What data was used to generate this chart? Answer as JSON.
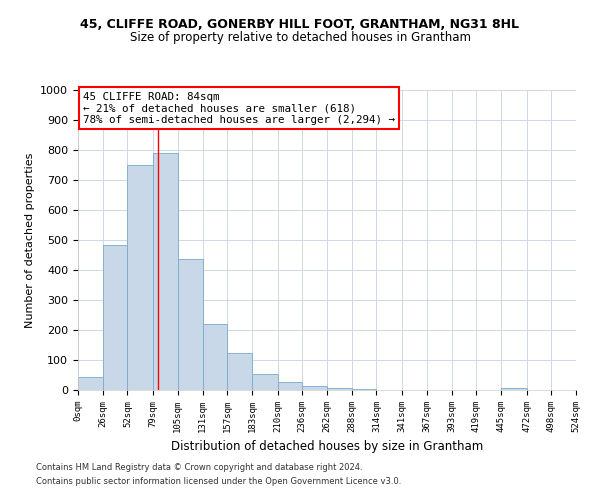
{
  "title_line1": "45, CLIFFE ROAD, GONERBY HILL FOOT, GRANTHAM, NG31 8HL",
  "title_line2": "Size of property relative to detached houses in Grantham",
  "xlabel": "Distribution of detached houses by size in Grantham",
  "ylabel": "Number of detached properties",
  "bar_edges": [
    0,
    26,
    52,
    79,
    105,
    131,
    157,
    183,
    210,
    236,
    262,
    288,
    314,
    341,
    367,
    393,
    419,
    445,
    472,
    498,
    524
  ],
  "bar_heights": [
    45,
    485,
    750,
    790,
    438,
    220,
    125,
    52,
    28,
    15,
    8,
    3,
    1,
    1,
    0,
    0,
    0,
    8,
    0,
    0
  ],
  "tick_labels": [
    "0sqm",
    "26sqm",
    "52sqm",
    "79sqm",
    "105sqm",
    "131sqm",
    "157sqm",
    "183sqm",
    "210sqm",
    "236sqm",
    "262sqm",
    "288sqm",
    "314sqm",
    "341sqm",
    "367sqm",
    "393sqm",
    "419sqm",
    "445sqm",
    "472sqm",
    "498sqm",
    "524sqm"
  ],
  "bar_color": "#c8d8e8",
  "bar_edgecolor": "#7aaac8",
  "property_line_x": 84,
  "annotation_line1": "45 CLIFFE ROAD: 84sqm",
  "annotation_line2": "← 21% of detached houses are smaller (618)",
  "annotation_line3": "78% of semi-detached houses are larger (2,294) →",
  "ylim": [
    0,
    1000
  ],
  "yticks": [
    0,
    100,
    200,
    300,
    400,
    500,
    600,
    700,
    800,
    900,
    1000
  ],
  "footnote1": "Contains HM Land Registry data © Crown copyright and database right 2024.",
  "footnote2": "Contains public sector information licensed under the Open Government Licence v3.0.",
  "background_color": "#ffffff",
  "grid_color": "#d0d8e8"
}
